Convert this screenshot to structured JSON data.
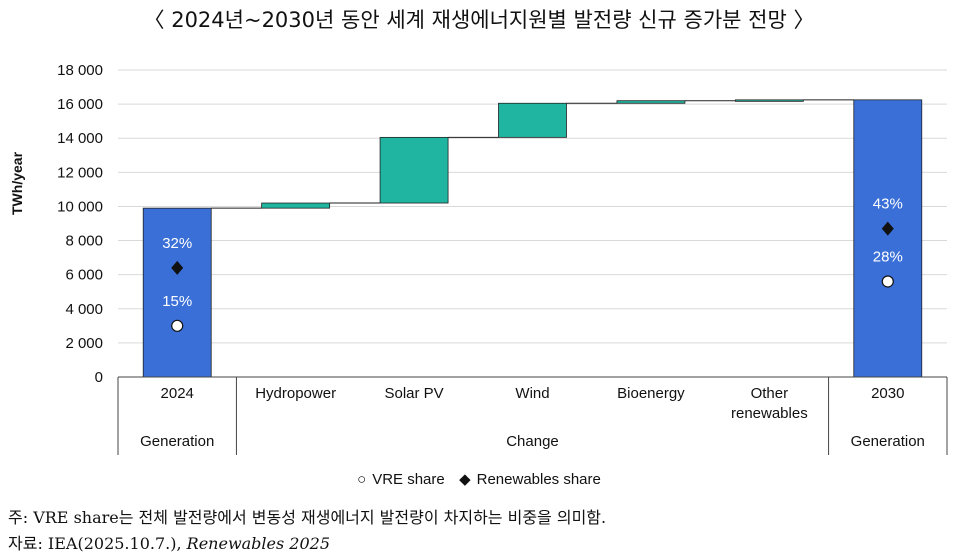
{
  "title": "〈 2024년~2030년 동안 세계 재생에너지원별 발전량 신규 증가분 전망 〉",
  "chart_data": {
    "type": "bar",
    "subtype": "waterfall",
    "ylabel": "TWh/year",
    "ylim": [
      0,
      18000
    ],
    "yticks": [
      "0",
      "2 000",
      "4 000",
      "6 000",
      "8 000",
      "10 000",
      "12 000",
      "14 000",
      "16 000",
      "18 000"
    ],
    "ytick_values": [
      0,
      2000,
      4000,
      6000,
      8000,
      10000,
      12000,
      14000,
      16000,
      18000
    ],
    "grid": true,
    "categories": [
      "2024",
      "Hydropower",
      "Solar PV",
      "Wind",
      "Bioenergy",
      "Other renewables",
      "2030"
    ],
    "bars": [
      {
        "label": "2024",
        "kind": "total",
        "base": 0,
        "top": 9900,
        "color": "#3a6fd8"
      },
      {
        "label": "Hydropower",
        "kind": "change",
        "base": 9900,
        "top": 10200,
        "color": "#1fb5a0"
      },
      {
        "label": "Solar PV",
        "kind": "change",
        "base": 10200,
        "top": 14050,
        "color": "#1fb5a0"
      },
      {
        "label": "Wind",
        "kind": "change",
        "base": 14050,
        "top": 16050,
        "color": "#1fb5a0"
      },
      {
        "label": "Bioenergy",
        "kind": "change",
        "base": 16050,
        "top": 16200,
        "color": "#1fb5a0"
      },
      {
        "label": "Other renewables",
        "kind": "change",
        "base": 16200,
        "top": 16250,
        "color": "#1fb5a0"
      },
      {
        "label": "2030",
        "kind": "total",
        "base": 0,
        "top": 16250,
        "color": "#3a6fd8"
      }
    ],
    "groups": [
      {
        "label": "Generation",
        "span": [
          "2024"
        ]
      },
      {
        "label": "Change",
        "span": [
          "Hydropower",
          "Solar PV",
          "Wind",
          "Bioenergy",
          "Other renewables"
        ]
      },
      {
        "label": "Generation",
        "span": [
          "2030"
        ]
      }
    ],
    "shares": [
      {
        "bar": "2024",
        "vre_label": "15%",
        "vre_marker_y": 3000,
        "renewables_label": "32%",
        "renewables_marker_y": 6400
      },
      {
        "bar": "2030",
        "vre_label": "28%",
        "vre_marker_y": 5600,
        "renewables_label": "43%",
        "renewables_marker_y": 8700
      }
    ],
    "legend": {
      "placement": "bottom",
      "items": [
        {
          "symbol": "○",
          "label": "VRE share"
        },
        {
          "symbol": "◆",
          "label": "Renewables share"
        }
      ]
    }
  },
  "notes": {
    "note1": "주: VRE share는 전체 발전량에서 변동성 재생에너지 발전량이 차지하는 비중을 의미함.",
    "source_prefix": "자료: IEA(2025.10.7.), ",
    "source_title": "Renewables 2025"
  }
}
